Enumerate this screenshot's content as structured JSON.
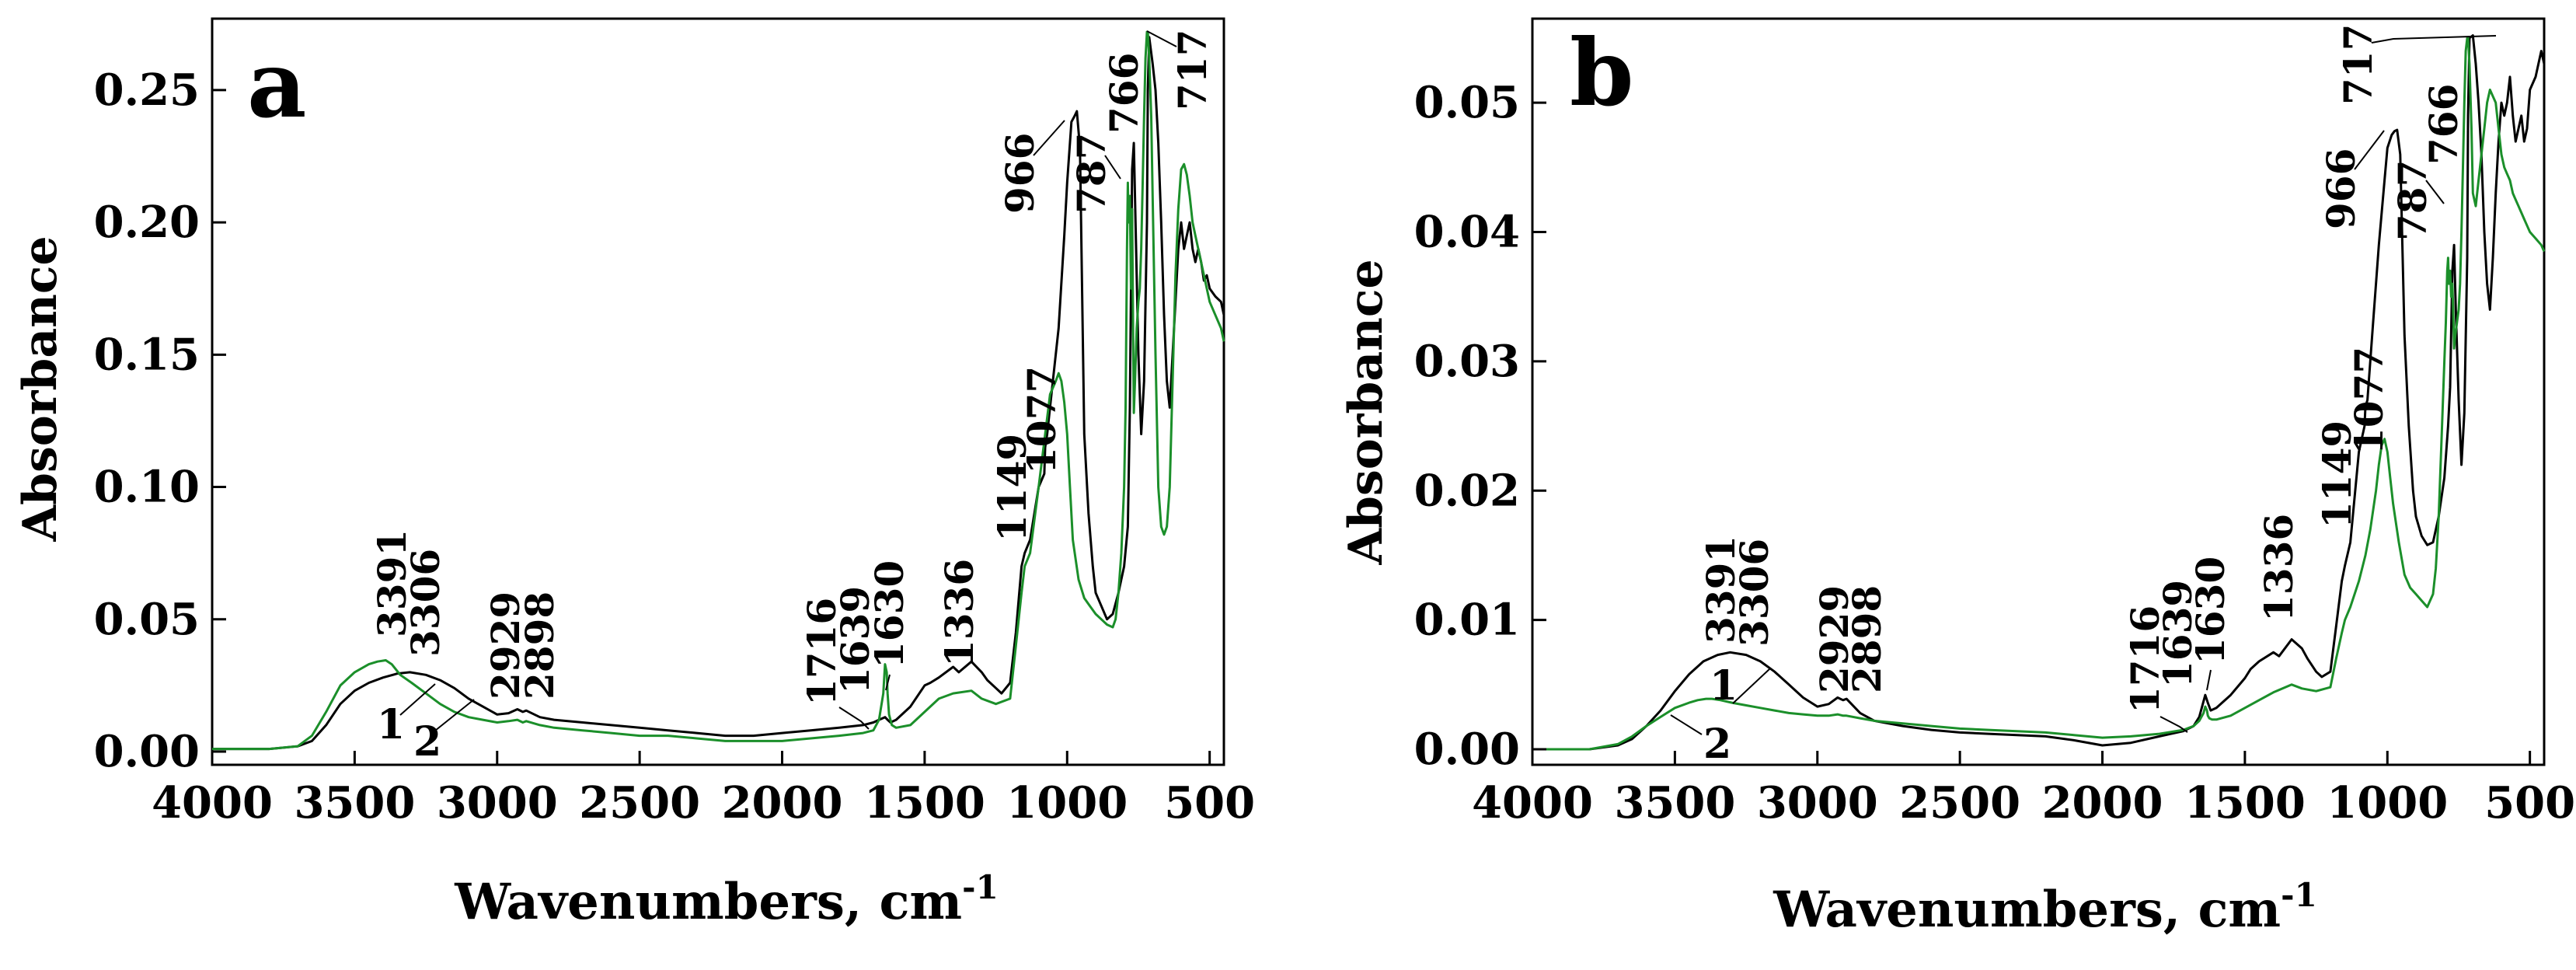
{
  "chart_data": [
    {
      "type": "line",
      "panel_label": "a",
      "xlabel": "Wavenumbers, cm",
      "xlabel_sup": "-1",
      "ylabel": "Absorbance",
      "xlim": [
        4000,
        450
      ],
      "ylim": [
        -0.005,
        0.277
      ],
      "x_ticks": [
        4000,
        3500,
        3000,
        2500,
        2000,
        1500,
        1000,
        500
      ],
      "x_tick_labels": [
        "4000",
        "3500",
        "3000",
        "2500",
        "2000",
        "1500",
        "1000",
        "500"
      ],
      "y_ticks": [
        0.0,
        0.05,
        0.1,
        0.15,
        0.2,
        0.25
      ],
      "y_tick_labels": [
        "0.00",
        "0.05",
        "0.10",
        "0.15",
        "0.20",
        "0.25"
      ],
      "series": [
        {
          "name": "1",
          "color": "#000000",
          "x": [
            4000,
            3800,
            3700,
            3650,
            3600,
            3550,
            3500,
            3450,
            3400,
            3350,
            3306,
            3250,
            3200,
            3150,
            3100,
            3050,
            3000,
            2960,
            2929,
            2910,
            2898,
            2850,
            2800,
            2700,
            2600,
            2500,
            2400,
            2300,
            2200,
            2100,
            2000,
            1900,
            1800,
            1716,
            1680,
            1660,
            1639,
            1630,
            1620,
            1600,
            1550,
            1500,
            1480,
            1450,
            1400,
            1380,
            1336,
            1300,
            1280,
            1250,
            1230,
            1200,
            1180,
            1160,
            1149,
            1130,
            1100,
            1080,
            1077,
            1070,
            1050,
            1030,
            1010,
            1000,
            985,
            975,
            966,
            955,
            940,
            925,
            910,
            900,
            880,
            860,
            840,
            820,
            800,
            787,
            780,
            772,
            766,
            760,
            750,
            740,
            730,
            720,
            717,
            712,
            700,
            690,
            680,
            670,
            660,
            650,
            640,
            630,
            620,
            610,
            600,
            590,
            580,
            570,
            560,
            550,
            540,
            530,
            520,
            510,
            500,
            480,
            460,
            450
          ],
          "y": [
            0.001,
            0.001,
            0.002,
            0.004,
            0.01,
            0.018,
            0.023,
            0.026,
            0.028,
            0.0295,
            0.03,
            0.029,
            0.027,
            0.024,
            0.02,
            0.017,
            0.014,
            0.0145,
            0.016,
            0.015,
            0.0155,
            0.013,
            0.012,
            0.011,
            0.01,
            0.009,
            0.008,
            0.007,
            0.006,
            0.006,
            0.007,
            0.008,
            0.009,
            0.01,
            0.011,
            0.012,
            0.013,
            0.012,
            0.011,
            0.012,
            0.017,
            0.025,
            0.026,
            0.028,
            0.032,
            0.03,
            0.034,
            0.03,
            0.027,
            0.024,
            0.022,
            0.026,
            0.045,
            0.07,
            0.075,
            0.08,
            0.1,
            0.105,
            0.115,
            0.12,
            0.14,
            0.16,
            0.195,
            0.215,
            0.238,
            0.24,
            0.242,
            0.228,
            0.12,
            0.09,
            0.07,
            0.06,
            0.055,
            0.05,
            0.052,
            0.06,
            0.07,
            0.085,
            0.13,
            0.22,
            0.23,
            0.2,
            0.15,
            0.12,
            0.14,
            0.2,
            0.25,
            0.27,
            0.26,
            0.25,
            0.23,
            0.2,
            0.165,
            0.14,
            0.13,
            0.15,
            0.17,
            0.19,
            0.2,
            0.19,
            0.195,
            0.2,
            0.19,
            0.185,
            0.19,
            0.185,
            0.178,
            0.18,
            0.175,
            0.172,
            0.17,
            0.165
          ]
        },
        {
          "name": "2",
          "color": "#1b8f2a",
          "x": [
            4000,
            3800,
            3700,
            3650,
            3600,
            3550,
            3500,
            3450,
            3420,
            3391,
            3370,
            3340,
            3300,
            3250,
            3200,
            3150,
            3100,
            3050,
            3000,
            2960,
            2929,
            2910,
            2898,
            2850,
            2800,
            2700,
            2600,
            2500,
            2400,
            2300,
            2200,
            2100,
            2000,
            1900,
            1800,
            1716,
            1680,
            1660,
            1645,
            1639,
            1633,
            1630,
            1625,
            1615,
            1600,
            1550,
            1500,
            1450,
            1400,
            1336,
            1300,
            1250,
            1200,
            1180,
            1160,
            1149,
            1130,
            1100,
            1077,
            1060,
            1040,
            1030,
            1020,
            1010,
            1000,
            990,
            980,
            960,
            940,
            920,
            900,
            880,
            860,
            840,
            830,
            820,
            810,
            800,
            795,
            790,
            787,
            784,
            780,
            776,
            772,
            768,
            766,
            762,
            756,
            750,
            745,
            740,
            735,
            730,
            725,
            720,
            717,
            712,
            705,
            700,
            690,
            680,
            670,
            660,
            650,
            640,
            630,
            620,
            610,
            600,
            590,
            580,
            570,
            560,
            550,
            540,
            530,
            520,
            510,
            500,
            480,
            460,
            450
          ],
          "y": [
            0.001,
            0.001,
            0.002,
            0.006,
            0.015,
            0.025,
            0.03,
            0.033,
            0.034,
            0.0345,
            0.033,
            0.029,
            0.026,
            0.022,
            0.018,
            0.015,
            0.013,
            0.012,
            0.011,
            0.0115,
            0.012,
            0.011,
            0.0115,
            0.01,
            0.009,
            0.008,
            0.007,
            0.006,
            0.006,
            0.005,
            0.004,
            0.004,
            0.004,
            0.005,
            0.006,
            0.007,
            0.008,
            0.012,
            0.022,
            0.033,
            0.03,
            0.022,
            0.014,
            0.01,
            0.009,
            0.01,
            0.015,
            0.02,
            0.022,
            0.023,
            0.02,
            0.018,
            0.02,
            0.04,
            0.06,
            0.07,
            0.075,
            0.1,
            0.12,
            0.135,
            0.14,
            0.143,
            0.14,
            0.132,
            0.12,
            0.1,
            0.08,
            0.065,
            0.058,
            0.055,
            0.052,
            0.05,
            0.048,
            0.047,
            0.05,
            0.06,
            0.075,
            0.1,
            0.13,
            0.19,
            0.215,
            0.2,
            0.21,
            0.175,
            0.205,
            0.15,
            0.128,
            0.14,
            0.16,
            0.17,
            0.175,
            0.19,
            0.215,
            0.24,
            0.262,
            0.272,
            0.272,
            0.262,
            0.24,
            0.21,
            0.15,
            0.1,
            0.085,
            0.082,
            0.085,
            0.1,
            0.14,
            0.18,
            0.205,
            0.22,
            0.222,
            0.218,
            0.21,
            0.2,
            0.195,
            0.19,
            0.185,
            0.18,
            0.175,
            0.17,
            0.165,
            0.16,
            0.155
          ]
        }
      ],
      "curve_labels": [
        "1",
        "2"
      ],
      "peak_labels": [
        "3391",
        "3306",
        "2929",
        "2898",
        "1716",
        "1639",
        "1630",
        "1336",
        "1149",
        "1077",
        "966",
        "787",
        "766",
        "717"
      ]
    },
    {
      "type": "line",
      "panel_label": "b",
      "xlabel": "Wavenumbers, cm",
      "xlabel_sup": "-1",
      "ylabel": "Absorbance",
      "xlim": [
        4000,
        450
      ],
      "ylim": [
        -0.0012,
        0.0565
      ],
      "x_ticks": [
        4000,
        3500,
        3000,
        2500,
        2000,
        1500,
        1000,
        500
      ],
      "x_tick_labels": [
        "4000",
        "3500",
        "3000",
        "2500",
        "2000",
        "1500",
        "1000",
        "500"
      ],
      "y_ticks": [
        0.0,
        0.01,
        0.02,
        0.03,
        0.04,
        0.05
      ],
      "y_tick_labels": [
        "0.00",
        "0.01",
        "0.02",
        "0.03",
        "0.04",
        "0.05"
      ],
      "series": [
        {
          "name": "1",
          "color": "#000000",
          "x": [
            4000,
            3800,
            3700,
            3650,
            3600,
            3550,
            3500,
            3450,
            3400,
            3350,
            3306,
            3250,
            3200,
            3150,
            3100,
            3050,
            3000,
            2960,
            2929,
            2910,
            2898,
            2850,
            2800,
            2700,
            2600,
            2500,
            2400,
            2300,
            2200,
            2100,
            2000,
            1900,
            1800,
            1716,
            1680,
            1660,
            1639,
            1630,
            1620,
            1600,
            1550,
            1500,
            1480,
            1450,
            1400,
            1380,
            1336,
            1300,
            1280,
            1250,
            1230,
            1200,
            1180,
            1160,
            1149,
            1130,
            1100,
            1080,
            1077,
            1070,
            1050,
            1030,
            1010,
            1000,
            985,
            975,
            966,
            955,
            940,
            925,
            910,
            900,
            880,
            860,
            840,
            820,
            800,
            787,
            780,
            772,
            766,
            760,
            750,
            740,
            730,
            720,
            717,
            712,
            700,
            690,
            680,
            670,
            660,
            650,
            640,
            630,
            620,
            610,
            600,
            590,
            580,
            570,
            560,
            550,
            540,
            530,
            520,
            510,
            500,
            480,
            460,
            450
          ],
          "y": [
            0.0,
            0.0,
            0.0003,
            0.0008,
            0.0018,
            0.003,
            0.0045,
            0.0058,
            0.0068,
            0.0073,
            0.0075,
            0.0073,
            0.0068,
            0.006,
            0.005,
            0.004,
            0.0033,
            0.0035,
            0.004,
            0.0038,
            0.0039,
            0.0028,
            0.0022,
            0.0018,
            0.0015,
            0.0013,
            0.0012,
            0.0011,
            0.001,
            0.0007,
            0.0003,
            0.0005,
            0.001,
            0.0014,
            0.0018,
            0.0025,
            0.0042,
            0.0036,
            0.003,
            0.0032,
            0.0042,
            0.0055,
            0.0062,
            0.0068,
            0.0075,
            0.0072,
            0.0085,
            0.0078,
            0.007,
            0.006,
            0.0056,
            0.006,
            0.0095,
            0.013,
            0.0142,
            0.016,
            0.023,
            0.025,
            0.0265,
            0.027,
            0.033,
            0.039,
            0.044,
            0.0465,
            0.0475,
            0.0478,
            0.0479,
            0.046,
            0.032,
            0.025,
            0.02,
            0.018,
            0.0165,
            0.0158,
            0.016,
            0.018,
            0.021,
            0.025,
            0.028,
            0.037,
            0.039,
            0.034,
            0.027,
            0.022,
            0.026,
            0.038,
            0.049,
            0.055,
            0.0552,
            0.053,
            0.05,
            0.046,
            0.04,
            0.036,
            0.034,
            0.038,
            0.043,
            0.047,
            0.05,
            0.049,
            0.05,
            0.052,
            0.049,
            0.047,
            0.048,
            0.049,
            0.047,
            0.048,
            0.051,
            0.052,
            0.054,
            0.053
          ]
        },
        {
          "name": "2",
          "color": "#1b8f2a",
          "x": [
            4000,
            3800,
            3700,
            3650,
            3600,
            3550,
            3500,
            3450,
            3420,
            3391,
            3370,
            3340,
            3300,
            3250,
            3200,
            3150,
            3100,
            3050,
            3000,
            2960,
            2929,
            2910,
            2898,
            2850,
            2800,
            2700,
            2600,
            2500,
            2400,
            2300,
            2200,
            2100,
            2000,
            1900,
            1800,
            1716,
            1680,
            1660,
            1645,
            1639,
            1633,
            1630,
            1625,
            1615,
            1600,
            1550,
            1500,
            1450,
            1400,
            1336,
            1300,
            1250,
            1200,
            1180,
            1160,
            1149,
            1130,
            1100,
            1077,
            1060,
            1040,
            1030,
            1020,
            1010,
            1000,
            990,
            980,
            960,
            940,
            920,
            900,
            880,
            860,
            840,
            830,
            820,
            810,
            800,
            795,
            790,
            787,
            784,
            780,
            776,
            772,
            768,
            766,
            762,
            756,
            750,
            745,
            740,
            735,
            730,
            725,
            720,
            717,
            712,
            705,
            700,
            690,
            680,
            670,
            660,
            650,
            640,
            630,
            620,
            610,
            600,
            590,
            580,
            570,
            560,
            550,
            540,
            530,
            520,
            510,
            500,
            480,
            460,
            450
          ],
          "y": [
            0.0,
            0.0,
            0.0004,
            0.001,
            0.0018,
            0.0025,
            0.0032,
            0.0036,
            0.0038,
            0.0039,
            0.0039,
            0.0038,
            0.0036,
            0.0034,
            0.0032,
            0.003,
            0.0028,
            0.0027,
            0.0026,
            0.0026,
            0.0027,
            0.0026,
            0.0026,
            0.0024,
            0.0022,
            0.002,
            0.0018,
            0.0016,
            0.0015,
            0.0014,
            0.0013,
            0.0011,
            0.0009,
            0.001,
            0.0012,
            0.0015,
            0.0018,
            0.0022,
            0.0028,
            0.0033,
            0.003,
            0.0026,
            0.0024,
            0.0023,
            0.0023,
            0.0026,
            0.0032,
            0.0038,
            0.0044,
            0.005,
            0.0047,
            0.0045,
            0.0048,
            0.007,
            0.009,
            0.01,
            0.011,
            0.013,
            0.015,
            0.017,
            0.02,
            0.022,
            0.0235,
            0.024,
            0.023,
            0.021,
            0.019,
            0.016,
            0.0135,
            0.0125,
            0.012,
            0.0115,
            0.011,
            0.012,
            0.014,
            0.018,
            0.024,
            0.03,
            0.033,
            0.037,
            0.038,
            0.036,
            0.037,
            0.035,
            0.036,
            0.033,
            0.031,
            0.032,
            0.033,
            0.034,
            0.036,
            0.04,
            0.045,
            0.05,
            0.054,
            0.055,
            0.055,
            0.053,
            0.048,
            0.043,
            0.042,
            0.044,
            0.046,
            0.048,
            0.05,
            0.051,
            0.0505,
            0.05,
            0.048,
            0.046,
            0.045,
            0.0445,
            0.044,
            0.043,
            0.0425,
            0.042,
            0.0415,
            0.041,
            0.0405,
            0.04,
            0.0395,
            0.039,
            0.0385
          ]
        }
      ],
      "curve_labels": [
        "1",
        "2"
      ],
      "peak_labels": [
        "3391",
        "3306",
        "2929",
        "2898",
        "1716",
        "1639",
        "1630",
        "1336",
        "1149",
        "1077",
        "966",
        "787",
        "766",
        "717"
      ]
    }
  ]
}
